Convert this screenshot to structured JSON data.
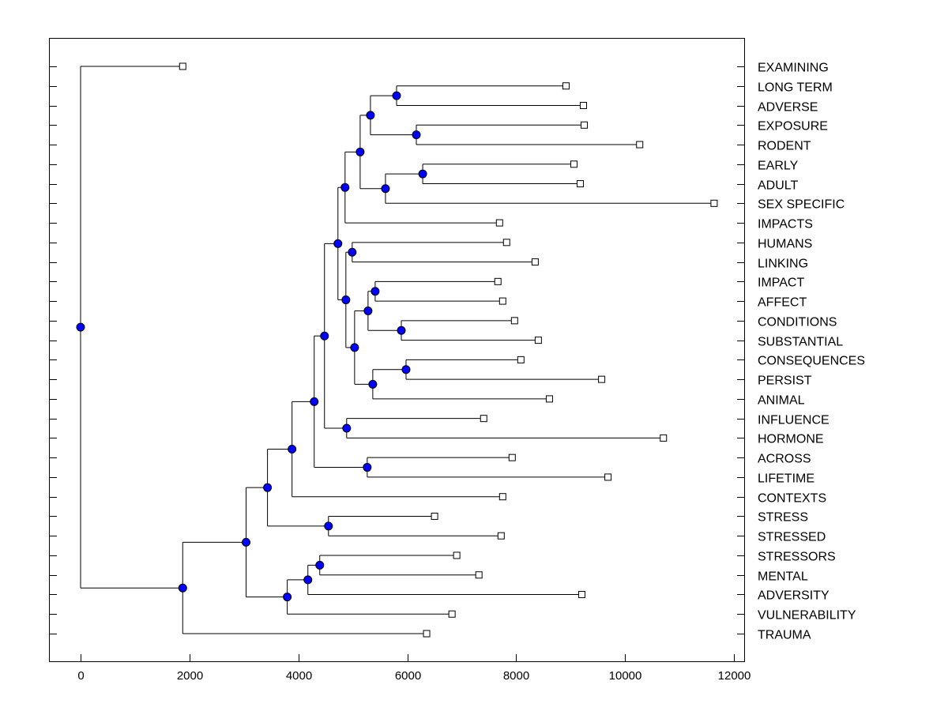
{
  "chart_data": {
    "type": "dendrogram",
    "title": "",
    "xlabel": "",
    "ylabel": "",
    "xlim": [
      -580,
      12200
    ],
    "x_ticks": [
      0,
      2000,
      4000,
      6000,
      8000,
      10000,
      12000
    ],
    "x_tick_labels": [
      "0",
      "2000",
      "4000",
      "6000",
      "8000",
      "10000",
      "12000"
    ],
    "node_color": "#0000ff",
    "leaves": [
      {
        "label": "EXAMINING",
        "value": 1876
      },
      {
        "label": "LONG TERM",
        "value": 8916
      },
      {
        "label": "ADVERSE",
        "value": 9236
      },
      {
        "label": "EXPOSURE",
        "value": 9251
      },
      {
        "label": "RODENT",
        "value": 10269
      },
      {
        "label": "EARLY",
        "value": 9062
      },
      {
        "label": "ADULT",
        "value": 9178
      },
      {
        "label": "SEX SPECIFIC",
        "value": 11636
      },
      {
        "label": "IMPACTS",
        "value": 7695
      },
      {
        "label": "HUMANS",
        "value": 7825
      },
      {
        "label": "LINKING",
        "value": 8349
      },
      {
        "label": "IMPACT",
        "value": 7665
      },
      {
        "label": "AFFECT",
        "value": 7753
      },
      {
        "label": "CONDITIONS",
        "value": 7971
      },
      {
        "label": "SUBSTANTIAL",
        "value": 8407
      },
      {
        "label": "CONSEQUENCES",
        "value": 8087
      },
      {
        "label": "PERSIST",
        "value": 9571
      },
      {
        "label": "ANIMAL",
        "value": 8611
      },
      {
        "label": "INFLUENCE",
        "value": 7404
      },
      {
        "label": "HORMONE",
        "value": 10705
      },
      {
        "label": "ACROSS",
        "value": 7927
      },
      {
        "label": "LIFETIME",
        "value": 9687
      },
      {
        "label": "CONTEXTS",
        "value": 7753
      },
      {
        "label": "STRESS",
        "value": 6502
      },
      {
        "label": "STRESSED",
        "value": 7724
      },
      {
        "label": "STRESSORS",
        "value": 6909
      },
      {
        "label": "MENTAL",
        "value": 7316
      },
      {
        "label": "ADVERSITY",
        "value": 9207
      },
      {
        "label": "VULNERABILITY",
        "value": 6822
      },
      {
        "label": "TRAUMA",
        "value": 6356
      }
    ],
    "tree": {
      "value": 0,
      "children": [
        {
          "leaf": 0
        },
        {
          "value": 1876,
          "children": [
            {
              "value": 3040,
              "children": [
                {
                  "value": 3433,
                  "children": [
                    {
                      "value": 3884,
                      "children": [
                        {
                          "value": 4291,
                          "children": [
                            {
                              "value": 4480,
                              "children": [
                                {
                                  "value": 4727,
                                  "children": [
                                    {
                                      "value": 4858,
                                      "children": [
                                        {
                                          "value": 5135,
                                          "children": [
                                            {
                                              "value": 5324,
                                              "children": [
                                                {
                                                  "value": 5804,
                                                  "children": [
                                                    {
                                                      "leaf": 1
                                                    },
                                                    {
                                                      "leaf": 2
                                                    }
                                                  ]
                                                },
                                                {
                                                  "value": 6167,
                                                  "children": [
                                                    {
                                                      "leaf": 3
                                                    },
                                                    {
                                                      "leaf": 4
                                                    }
                                                  ]
                                                }
                                              ]
                                            },
                                            {
                                              "value": 5600,
                                              "children": [
                                                {
                                                  "value": 6284,
                                                  "children": [
                                                    {
                                                      "leaf": 5
                                                    },
                                                    {
                                                      "leaf": 6
                                                    }
                                                  ]
                                                },
                                                {
                                                  "leaf": 7
                                                }
                                              ]
                                            }
                                          ]
                                        },
                                        {
                                          "leaf": 8
                                        }
                                      ]
                                    },
                                    {
                                      "value": 4873,
                                      "children": [
                                        {
                                          "value": 4989,
                                          "children": [
                                            {
                                              "leaf": 9
                                            },
                                            {
                                              "leaf": 10
                                            }
                                          ]
                                        },
                                        {
                                          "value": 5033,
                                          "children": [
                                            {
                                              "value": 5280,
                                              "children": [
                                                {
                                                  "value": 5411,
                                                  "children": [
                                                    {
                                                      "leaf": 11
                                                    },
                                                    {
                                                      "leaf": 12
                                                    }
                                                  ]
                                                },
                                                {
                                                  "value": 5891,
                                                  "children": [
                                                    {
                                                      "leaf": 13
                                                    },
                                                    {
                                                      "leaf": 14
                                                    }
                                                  ]
                                                }
                                              ]
                                            },
                                            {
                                              "value": 5367,
                                              "children": [
                                                {
                                                  "value": 5978,
                                                  "children": [
                                                    {
                                                      "leaf": 15
                                                    },
                                                    {
                                                      "leaf": 16
                                                    }
                                                  ]
                                                },
                                                {
                                                  "leaf": 17
                                                }
                                              ]
                                            }
                                          ]
                                        }
                                      ]
                                    }
                                  ]
                                },
                                {
                                  "value": 4887,
                                  "children": [
                                    {
                                      "leaf": 18
                                    },
                                    {
                                      "leaf": 19
                                    }
                                  ]
                                }
                              ]
                            },
                            {
                              "value": 5265,
                              "children": [
                                {
                                  "leaf": 20
                                },
                                {
                                  "leaf": 21
                                }
                              ]
                            }
                          ]
                        },
                        {
                          "leaf": 22
                        }
                      ]
                    },
                    {
                      "value": 4553,
                      "children": [
                        {
                          "leaf": 23
                        },
                        {
                          "leaf": 24
                        }
                      ]
                    }
                  ]
                },
                {
                  "value": 3796,
                  "children": [
                    {
                      "value": 4175,
                      "children": [
                        {
                          "value": 4393,
                          "children": [
                            {
                              "leaf": 25
                            },
                            {
                              "leaf": 26
                            }
                          ]
                        },
                        {
                          "leaf": 27
                        }
                      ]
                    },
                    {
                      "leaf": 28
                    }
                  ]
                }
              ]
            },
            {
              "leaf": 29
            }
          ]
        }
      ]
    }
  }
}
